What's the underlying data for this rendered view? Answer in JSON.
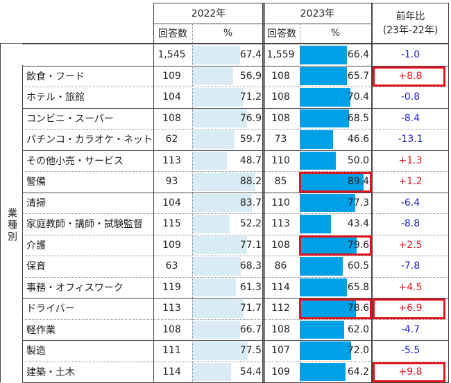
{
  "header": {
    "year_2022": "2022年",
    "year_2023": "2023年",
    "change": "前年比\n(23年-22年)",
    "count_label": "回答数",
    "pct_label": "%"
  },
  "side_label": "業種別",
  "colors": {
    "bar_2022": "#d9ecf6",
    "bar_2023": "#00a0e6",
    "negative": "#2020d0",
    "positive": "#e0141e",
    "highlight": "#e0141e"
  },
  "rows": [
    {
      "label": "",
      "n2022": "1,545",
      "p2022": "67.4",
      "n2023": "1,559",
      "p2023": "66.4",
      "change": "-1.0",
      "v2022": 67.4,
      "v2023": 66.4,
      "pos": false,
      "hl23": false,
      "hlChange": false
    },
    {
      "label": "飲食・フード",
      "n2022": "109",
      "p2022": "56.9",
      "n2023": "108",
      "p2023": "65.7",
      "change": "+8.8",
      "v2022": 56.9,
      "v2023": 65.7,
      "pos": true,
      "hl23": false,
      "hlChange": true
    },
    {
      "label": "ホテル・旅館",
      "n2022": "104",
      "p2022": "71.2",
      "n2023": "108",
      "p2023": "70.4",
      "change": "-0.8",
      "v2022": 71.2,
      "v2023": 70.4,
      "pos": false,
      "hl23": false,
      "hlChange": false
    },
    {
      "label": "コンビニ・スーパー",
      "n2022": "108",
      "p2022": "76.9",
      "n2023": "108",
      "p2023": "68.5",
      "change": "-8.4",
      "v2022": 76.9,
      "v2023": 68.5,
      "pos": false,
      "hl23": false,
      "hlChange": false
    },
    {
      "label": "パチンコ・カラオケ・ネットカフェ",
      "n2022": "62",
      "p2022": "59.7",
      "n2023": "73",
      "p2023": "46.6",
      "change": "-13.1",
      "v2022": 59.7,
      "v2023": 46.6,
      "pos": false,
      "hl23": false,
      "hlChange": false
    },
    {
      "label": "その他小売・サービス",
      "n2022": "113",
      "p2022": "48.7",
      "n2023": "110",
      "p2023": "50.0",
      "change": "+1.3",
      "v2022": 48.7,
      "v2023": 50.0,
      "pos": true,
      "hl23": false,
      "hlChange": false
    },
    {
      "label": "警備",
      "n2022": "93",
      "p2022": "88.2",
      "n2023": "85",
      "p2023": "89.4",
      "change": "+1.2",
      "v2022": 88.2,
      "v2023": 89.4,
      "pos": true,
      "hl23": true,
      "hlChange": false
    },
    {
      "label": "清掃",
      "n2022": "104",
      "p2022": "83.7",
      "n2023": "110",
      "p2023": "77.3",
      "change": "-6.4",
      "v2022": 83.7,
      "v2023": 77.3,
      "pos": false,
      "hl23": false,
      "hlChange": false
    },
    {
      "label": "家庭教師・講師・試験監督",
      "n2022": "115",
      "p2022": "52.2",
      "n2023": "113",
      "p2023": "43.4",
      "change": "-8.8",
      "v2022": 52.2,
      "v2023": 43.4,
      "pos": false,
      "hl23": false,
      "hlChange": false
    },
    {
      "label": "介護",
      "n2022": "109",
      "p2022": "77.1",
      "n2023": "108",
      "p2023": "79.6",
      "change": "+2.5",
      "v2022": 77.1,
      "v2023": 79.6,
      "pos": true,
      "hl23": true,
      "hlChange": false
    },
    {
      "label": "保育",
      "n2022": "63",
      "p2022": "68.3",
      "n2023": "86",
      "p2023": "60.5",
      "change": "-7.8",
      "v2022": 68.3,
      "v2023": 60.5,
      "pos": false,
      "hl23": false,
      "hlChange": false
    },
    {
      "label": "事務・オフィスワーク",
      "n2022": "119",
      "p2022": "61.3",
      "n2023": "114",
      "p2023": "65.8",
      "change": "+4.5",
      "v2022": 61.3,
      "v2023": 65.8,
      "pos": true,
      "hl23": false,
      "hlChange": false
    },
    {
      "label": "ドライバー",
      "n2022": "113",
      "p2022": "71.7",
      "n2023": "112",
      "p2023": "78.6",
      "change": "+6.9",
      "v2022": 71.7,
      "v2023": 78.6,
      "pos": true,
      "hl23": true,
      "hlChange": true
    },
    {
      "label": "軽作業",
      "n2022": "108",
      "p2022": "66.7",
      "n2023": "108",
      "p2023": "62.0",
      "change": "-4.7",
      "v2022": 66.7,
      "v2023": 62.0,
      "pos": false,
      "hl23": false,
      "hlChange": false
    },
    {
      "label": "製造",
      "n2022": "111",
      "p2022": "77.5",
      "n2023": "107",
      "p2023": "72.0",
      "change": "-5.5",
      "v2022": 77.5,
      "v2023": 72.0,
      "pos": false,
      "hl23": false,
      "hlChange": false
    },
    {
      "label": "建築・土木",
      "n2022": "114",
      "p2022": "54.4",
      "n2023": "109",
      "p2023": "64.2",
      "change": "+9.8",
      "v2022": 54.4,
      "v2023": 64.2,
      "pos": true,
      "hl23": false,
      "hlChange": true
    }
  ]
}
